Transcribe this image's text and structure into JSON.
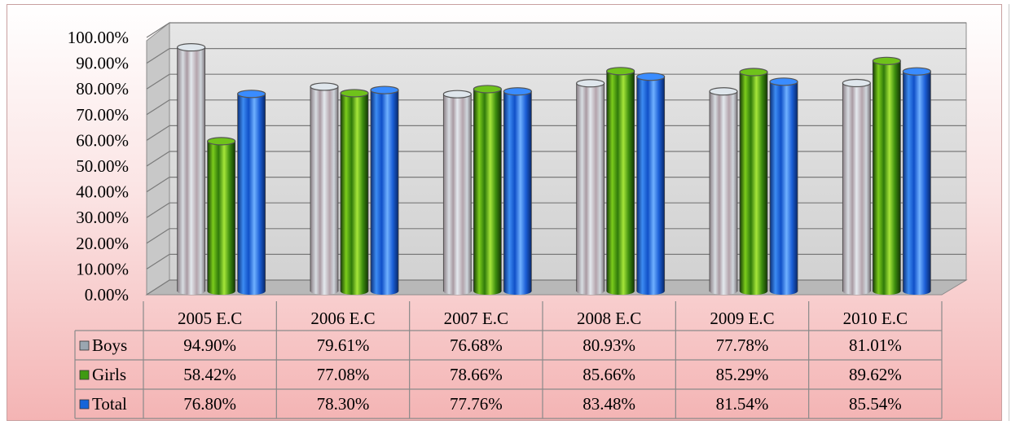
{
  "chart_data": {
    "type": "bar",
    "title": "",
    "xlabel": "",
    "ylabel": "",
    "ylim": [
      0,
      100
    ],
    "yticks": [
      "0.00%",
      "10.00%",
      "20.00%",
      "30.00%",
      "40.00%",
      "50.00%",
      "60.00%",
      "70.00%",
      "80.00%",
      "90.00%",
      "100.00%"
    ],
    "categories": [
      "2005 E.C",
      "2006 E.C",
      "2007 E.C",
      "2008 E.C",
      "2009 E.C",
      "2010 E.C"
    ],
    "series": [
      {
        "name": "Boys",
        "color": "#b9c3cc",
        "values": [
          94.9,
          79.61,
          76.68,
          80.93,
          77.78,
          81.01
        ],
        "labels": [
          "94.90%",
          "79.61%",
          "76.68%",
          "80.93%",
          "77.78%",
          "81.01%"
        ]
      },
      {
        "name": "Girls",
        "color": "#3f9a12",
        "values": [
          58.42,
          77.08,
          78.66,
          85.66,
          85.29,
          89.62
        ],
        "labels": [
          "58.42%",
          "77.08%",
          "78.66%",
          "85.66%",
          "85.29%",
          "89.62%"
        ]
      },
      {
        "name": "Total",
        "color": "#1565d8",
        "values": [
          76.8,
          78.3,
          77.76,
          83.48,
          81.54,
          85.54
        ],
        "labels": [
          "76.80%",
          "78.30%",
          "77.76%",
          "83.48%",
          "81.54%",
          "85.54%"
        ]
      }
    ],
    "grid": true,
    "legend": "data-table"
  }
}
